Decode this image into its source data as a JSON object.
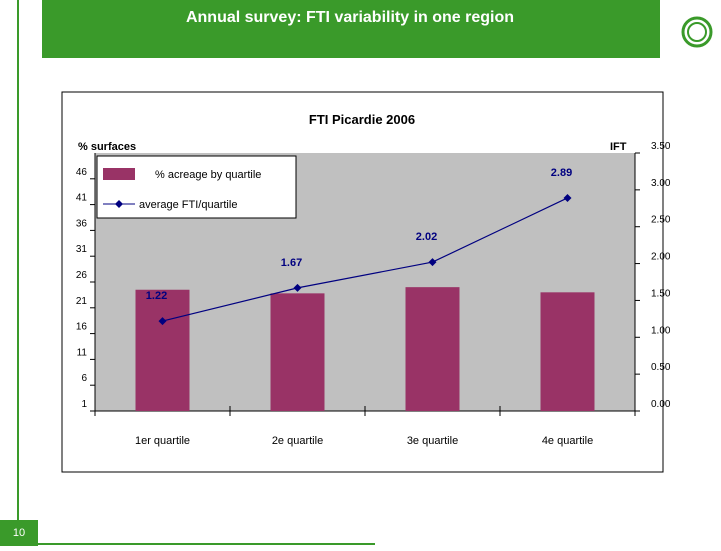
{
  "header": {
    "title": "Annual survey: FTI variability in one region"
  },
  "page_number": "10",
  "chart_data": {
    "type": "bar_line",
    "title": "FTI Picardie 2006",
    "y_label": "% surfaces",
    "y2_label": "IFT",
    "categories": [
      "1er quartile",
      "2e quartile",
      "3e quartile",
      "4e quartile"
    ],
    "series": [
      {
        "name": "% acreage by quartile",
        "type": "bar",
        "color": "#993366",
        "values": [
          24.5,
          23.8,
          25,
          24
        ]
      },
      {
        "name": "average FTI/quartile",
        "type": "line",
        "axis": "y2",
        "color": "#000080",
        "values": [
          1.22,
          1.67,
          2.02,
          2.89
        ]
      }
    ],
    "ylim": [
      1,
      51
    ],
    "yticks": [
      1,
      6,
      11,
      16,
      21,
      26,
      31,
      36,
      41,
      46
    ],
    "y2lim": [
      0,
      3.5
    ],
    "y2ticks": [
      {
        "value": 0,
        "label": "0.00"
      },
      {
        "value": 0.5,
        "label": "0.50"
      },
      {
        "value": 1,
        "label": "1.00"
      },
      {
        "value": 1.5,
        "label": "1.50"
      },
      {
        "value": 2,
        "label": "2.00"
      },
      {
        "value": 2.5,
        "label": "2.50"
      },
      {
        "value": 3,
        "label": "3.00"
      },
      {
        "value": 3.5,
        "label": "3.50"
      }
    ],
    "legend": "top-left"
  }
}
